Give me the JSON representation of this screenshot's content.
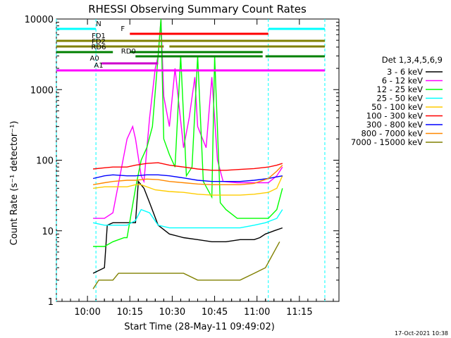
{
  "chart_data": {
    "type": "line",
    "title": "RHESSI Observing Summary Count Rates",
    "xlabel": "Start Time (28-May-11 09:49:02)",
    "ylabel": "Count Rate (s⁻¹ detector⁻¹)",
    "yscale": "log",
    "ylim": [
      1,
      10000
    ],
    "xlim_minutes": [
      0,
      100
    ],
    "y_ticks": [
      "1",
      "10",
      "100",
      "1000",
      "10000"
    ],
    "x_ticks": [
      {
        "label": "10:00",
        "minute": 11
      },
      {
        "label": "10:15",
        "minute": 26
      },
      {
        "label": "10:30",
        "minute": 41
      },
      {
        "label": "10:45",
        "minute": 56
      },
      {
        "label": "11:00",
        "minute": 71
      },
      {
        "label": "11:15",
        "minute": 86
      }
    ],
    "legend_header": "Det 1,3,4,5,6,9",
    "legend_position": "right",
    "timestamp": "17-Oct-2021 10:38",
    "series": [
      {
        "name": "3 - 6 keV",
        "color": "#000000",
        "points": [
          [
            13,
            2.5
          ],
          [
            17,
            3
          ],
          [
            18,
            12
          ],
          [
            20,
            13
          ],
          [
            25,
            13
          ],
          [
            28,
            13
          ],
          [
            29,
            50
          ],
          [
            31,
            40
          ],
          [
            33,
            25
          ],
          [
            36,
            12
          ],
          [
            40,
            9
          ],
          [
            45,
            8
          ],
          [
            50,
            7.5
          ],
          [
            55,
            7
          ],
          [
            60,
            7
          ],
          [
            65,
            7.5
          ],
          [
            70,
            7.5
          ],
          [
            72,
            8
          ],
          [
            74,
            9
          ],
          [
            77,
            10
          ],
          [
            80,
            11
          ]
        ]
      },
      {
        "name": "6 - 12 keV",
        "color": "#ff00ff",
        "points": [
          [
            13,
            15
          ],
          [
            17,
            15
          ],
          [
            20,
            18
          ],
          [
            25,
            200
          ],
          [
            27,
            300
          ],
          [
            28,
            200
          ],
          [
            30,
            60
          ],
          [
            31,
            50
          ],
          [
            33,
            400
          ],
          [
            35,
            2000
          ],
          [
            36,
            3000
          ],
          [
            37,
            10000
          ],
          [
            38,
            800
          ],
          [
            40,
            300
          ],
          [
            42,
            2000
          ],
          [
            45,
            150
          ],
          [
            47,
            400
          ],
          [
            49,
            1500
          ],
          [
            50,
            300
          ],
          [
            53,
            150
          ],
          [
            55,
            1500
          ],
          [
            57,
            100
          ],
          [
            59,
            50
          ],
          [
            64,
            48
          ],
          [
            70,
            48
          ],
          [
            75,
            48
          ],
          [
            78,
            60
          ],
          [
            80,
            80
          ]
        ]
      },
      {
        "name": "12 - 25 keV",
        "color": "#00ff00",
        "points": [
          [
            13,
            6
          ],
          [
            17,
            6
          ],
          [
            20,
            7
          ],
          [
            24,
            8
          ],
          [
            25,
            8
          ],
          [
            28,
            40
          ],
          [
            30,
            100
          ],
          [
            32,
            150
          ],
          [
            34,
            300
          ],
          [
            36,
            3000
          ],
          [
            37,
            10000
          ],
          [
            38,
            200
          ],
          [
            40,
            120
          ],
          [
            42,
            80
          ],
          [
            44,
            3000
          ],
          [
            46,
            60
          ],
          [
            48,
            80
          ],
          [
            50,
            3000
          ],
          [
            52,
            50
          ],
          [
            55,
            30
          ],
          [
            56,
            3000
          ],
          [
            58,
            25
          ],
          [
            60,
            20
          ],
          [
            64,
            15
          ],
          [
            70,
            15
          ],
          [
            75,
            15
          ],
          [
            78,
            20
          ],
          [
            80,
            40
          ]
        ]
      },
      {
        "name": "25 - 50 keV",
        "color": "#00ffff",
        "points": [
          [
            13,
            13
          ],
          [
            17,
            12
          ],
          [
            20,
            12
          ],
          [
            25,
            12
          ],
          [
            28,
            14
          ],
          [
            30,
            20
          ],
          [
            33,
            18
          ],
          [
            36,
            12
          ],
          [
            40,
            11
          ],
          [
            45,
            11
          ],
          [
            50,
            11
          ],
          [
            55,
            11
          ],
          [
            60,
            11
          ],
          [
            65,
            11
          ],
          [
            70,
            12
          ],
          [
            74,
            13
          ],
          [
            78,
            15
          ],
          [
            80,
            20
          ]
        ]
      },
      {
        "name": "50 - 100 keV",
        "color": "#ffcc00",
        "points": [
          [
            13,
            40
          ],
          [
            17,
            42
          ],
          [
            20,
            42
          ],
          [
            25,
            42
          ],
          [
            28,
            45
          ],
          [
            30,
            45
          ],
          [
            35,
            38
          ],
          [
            40,
            36
          ],
          [
            45,
            35
          ],
          [
            50,
            33
          ],
          [
            55,
            32
          ],
          [
            60,
            32
          ],
          [
            65,
            32
          ],
          [
            70,
            33
          ],
          [
            75,
            35
          ],
          [
            78,
            40
          ],
          [
            80,
            60
          ]
        ]
      },
      {
        "name": "100 - 300 keV",
        "color": "#ff0000",
        "points": [
          [
            13,
            75
          ],
          [
            17,
            78
          ],
          [
            20,
            80
          ],
          [
            25,
            80
          ],
          [
            28,
            85
          ],
          [
            32,
            90
          ],
          [
            36,
            92
          ],
          [
            40,
            85
          ],
          [
            45,
            80
          ],
          [
            50,
            75
          ],
          [
            55,
            72
          ],
          [
            60,
            72
          ],
          [
            65,
            74
          ],
          [
            70,
            76
          ],
          [
            75,
            80
          ],
          [
            78,
            85
          ],
          [
            80,
            90
          ]
        ]
      },
      {
        "name": "300 - 800 keV",
        "color": "#0000ff",
        "points": [
          [
            13,
            55
          ],
          [
            17,
            60
          ],
          [
            20,
            62
          ],
          [
            25,
            60
          ],
          [
            28,
            60
          ],
          [
            32,
            62
          ],
          [
            36,
            62
          ],
          [
            40,
            60
          ],
          [
            45,
            56
          ],
          [
            50,
            52
          ],
          [
            55,
            50
          ],
          [
            60,
            50
          ],
          [
            65,
            50
          ],
          [
            70,
            52
          ],
          [
            75,
            55
          ],
          [
            78,
            58
          ],
          [
            80,
            60
          ]
        ]
      },
      {
        "name": "800 - 7000 keV",
        "color": "#ff8800",
        "points": [
          [
            13,
            45
          ],
          [
            17,
            48
          ],
          [
            20,
            50
          ],
          [
            25,
            52
          ],
          [
            28,
            52
          ],
          [
            32,
            54
          ],
          [
            36,
            53
          ],
          [
            40,
            50
          ],
          [
            45,
            48
          ],
          [
            50,
            46
          ],
          [
            55,
            45
          ],
          [
            60,
            45
          ],
          [
            65,
            45
          ],
          [
            70,
            47
          ],
          [
            75,
            55
          ],
          [
            78,
            70
          ],
          [
            80,
            85
          ]
        ]
      },
      {
        "name": "7000 - 15000 keV",
        "color": "#808000",
        "points": [
          [
            13,
            1.5
          ],
          [
            15,
            2
          ],
          [
            17,
            2
          ],
          [
            20,
            2
          ],
          [
            22,
            2.5
          ],
          [
            25,
            2.5
          ],
          [
            28,
            2.5
          ],
          [
            30,
            2.5
          ],
          [
            35,
            2.5
          ],
          [
            40,
            2.5
          ],
          [
            45,
            2.5
          ],
          [
            50,
            2
          ],
          [
            55,
            2
          ],
          [
            60,
            2
          ],
          [
            65,
            2
          ],
          [
            70,
            2.5
          ],
          [
            74,
            3
          ],
          [
            77,
            5
          ],
          [
            79,
            7
          ]
        ]
      }
    ],
    "flags": [
      {
        "name": "N",
        "color": "#00ffff",
        "segments": [
          [
            0,
            14
          ],
          [
            75,
            95
          ]
        ]
      },
      {
        "name": "F",
        "color": "#ff0000",
        "segments": [
          [
            26,
            75
          ]
        ]
      },
      {
        "name": "FD1",
        "color": "#808000",
        "segments": [
          [
            0,
            95
          ]
        ]
      },
      {
        "name": "FD2",
        "color": "#808000",
        "segments": [
          [
            0,
            38
          ],
          [
            40,
            95
          ]
        ]
      },
      {
        "name": "RD6",
        "color": "#008000",
        "segments": [
          [
            0,
            20
          ],
          [
            26,
            73
          ]
        ]
      },
      {
        "name": "RD0",
        "color": "#008000",
        "segments": [
          [
            28,
            73
          ],
          [
            74,
            95
          ]
        ]
      },
      {
        "name": "A0",
        "color": "#cc00cc",
        "segments": [
          [
            16,
            36
          ]
        ]
      },
      {
        "name": "A1",
        "color": "#ff00ff",
        "segments": [
          [
            0,
            95
          ]
        ]
      }
    ]
  }
}
